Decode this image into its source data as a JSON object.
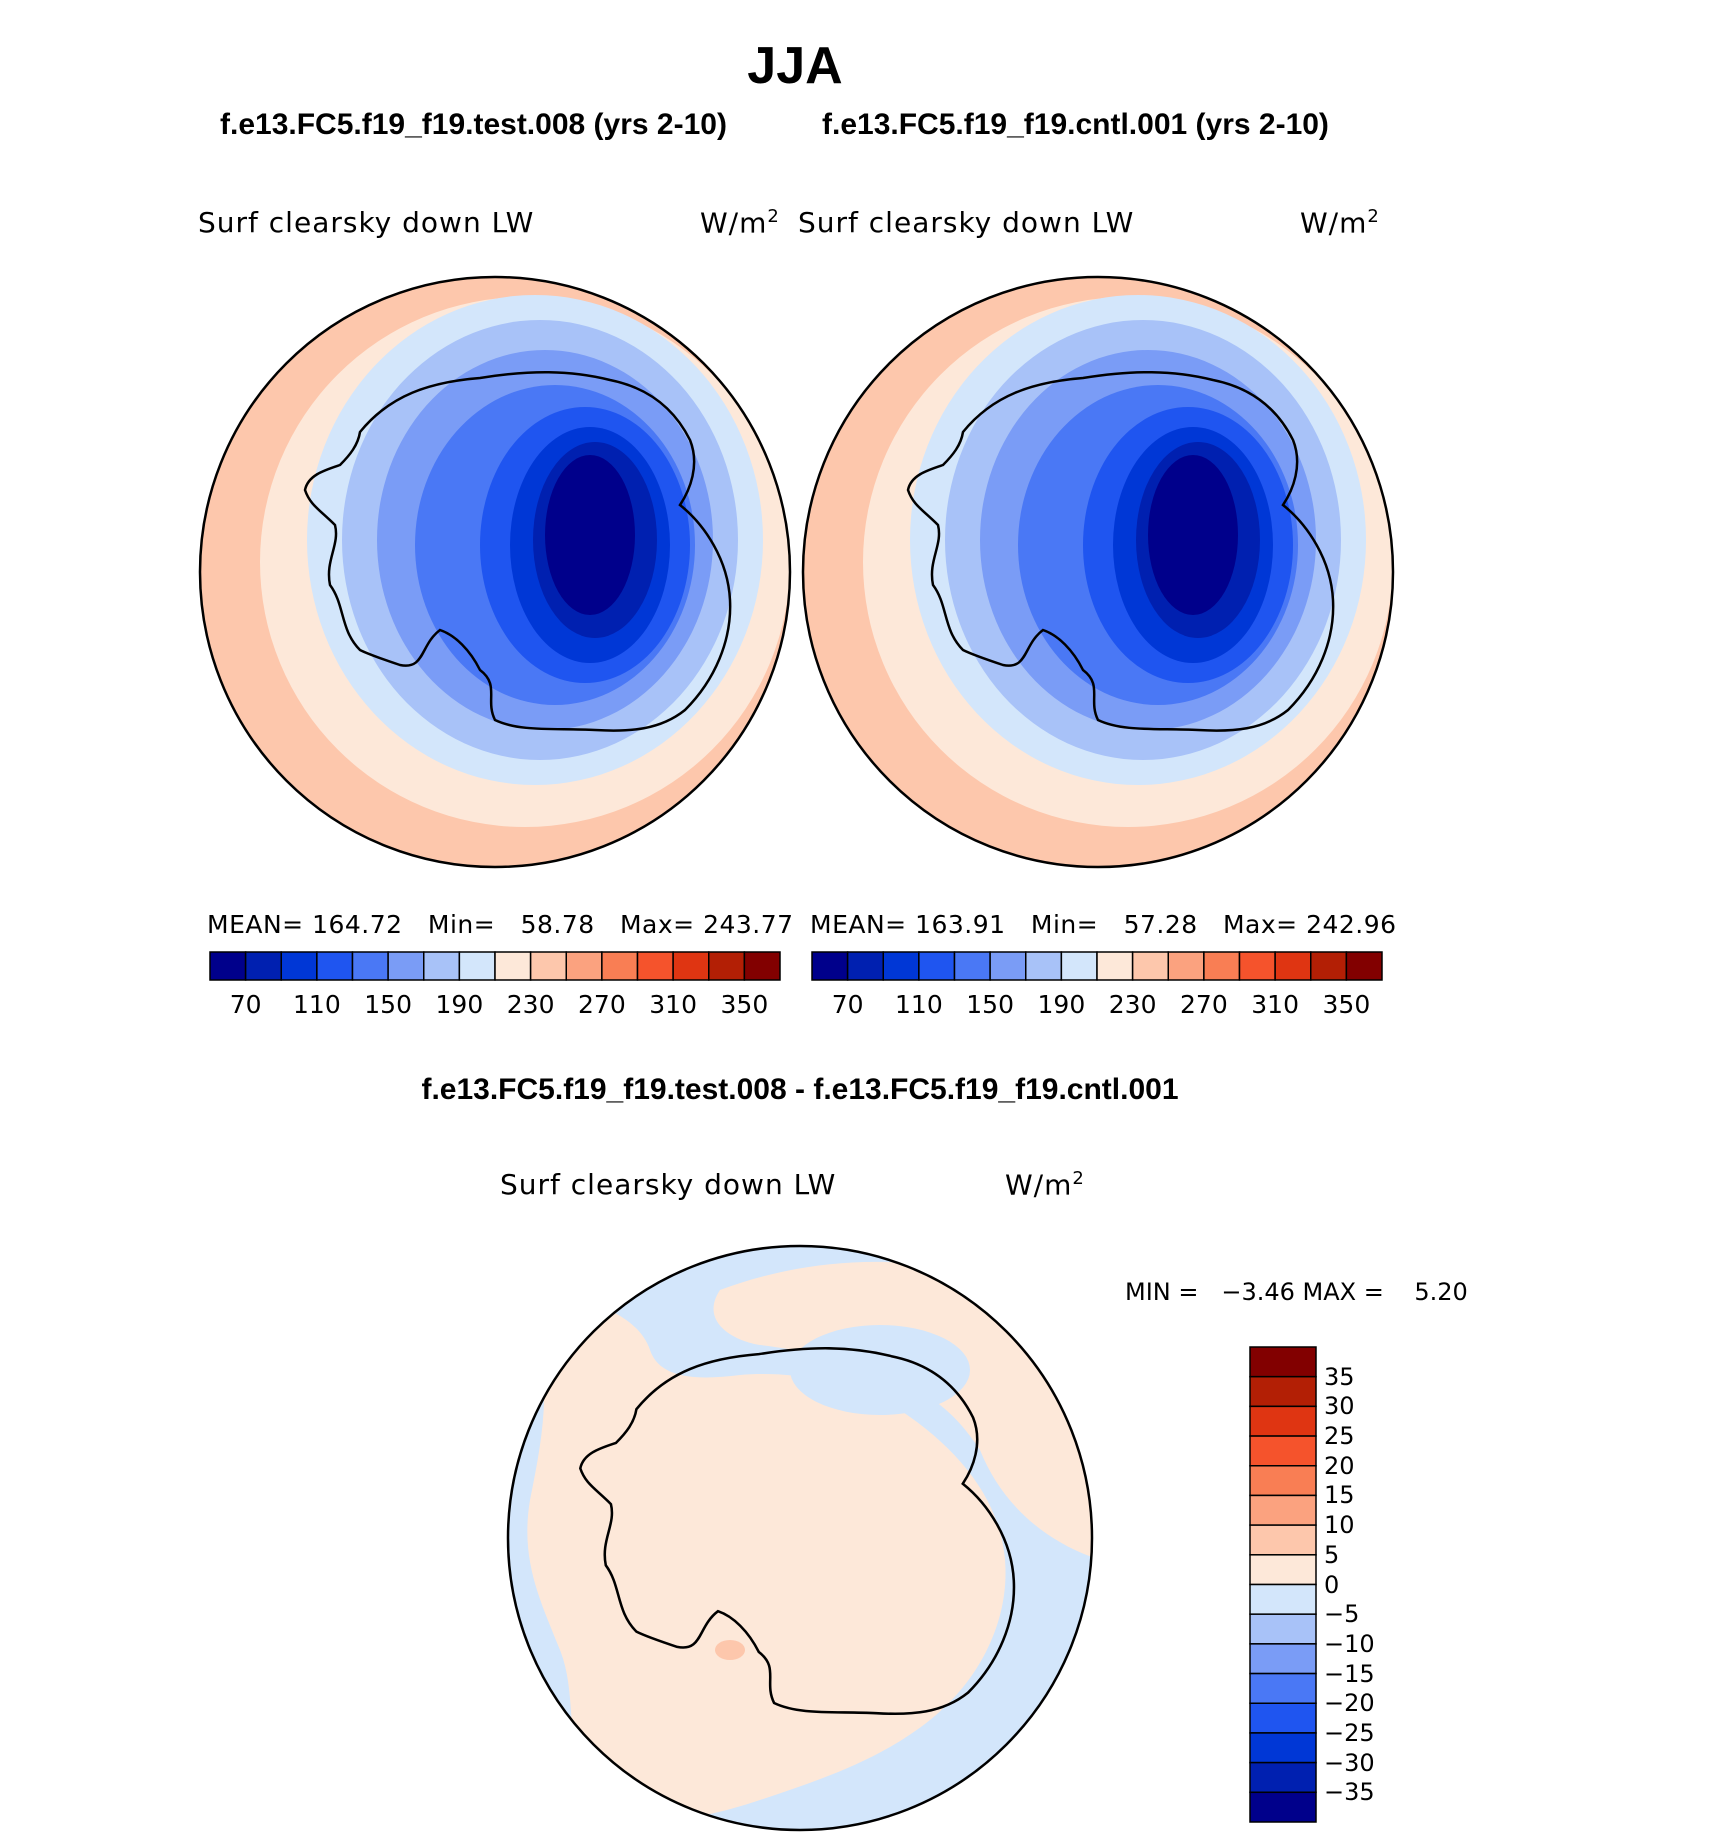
{
  "season": "JJA",
  "panels": [
    {
      "case": "f.e13.FC5.f19_f19.test.008 (yrs 2-10)",
      "variable": "Surf clearsky down LW",
      "units": "W/m",
      "units_exp": "2",
      "mean_label": "MEAN=",
      "mean": "164.72",
      "min_label": "Min=",
      "min": "58.78",
      "max_label": "Max=",
      "max": "243.77"
    },
    {
      "case": "f.e13.FC5.f19_f19.cntl.001 (yrs 2-10)",
      "variable": "Surf clearsky down LW",
      "units": "W/m",
      "units_exp": "2",
      "mean_label": "MEAN=",
      "mean": "163.91",
      "min_label": "Min=",
      "min": "57.28",
      "max_label": "Max=",
      "max": "242.96"
    }
  ],
  "diff": {
    "title": "f.e13.FC5.f19_f19.test.008 - f.e13.FC5.f19_f19.cntl.001",
    "variable": "Surf clearsky down LW",
    "units": "W/m",
    "units_exp": "2",
    "minmax_text": "MIN =   −3.46 MAX =    5.20"
  },
  "top_colorbar": {
    "labels": [
      "70",
      "110",
      "150",
      "190",
      "230",
      "270",
      "310",
      "350"
    ],
    "colors": [
      "#00008b",
      "#0020b0",
      "#0037d6",
      "#1f55f0",
      "#4a78f5",
      "#7a9cf6",
      "#a8c2f8",
      "#d3e6fb",
      "#fde8d9",
      "#fdc7ac",
      "#fba27f",
      "#f97e54",
      "#f5532c",
      "#df3512",
      "#b31f05",
      "#820000"
    ]
  },
  "diff_colorbar": {
    "labels": [
      "35",
      "30",
      "25",
      "20",
      "15",
      "10",
      "5",
      "0",
      "−5",
      "−10",
      "−15",
      "−20",
      "−25",
      "−30",
      "−35"
    ],
    "colors": [
      "#820000",
      "#b31f05",
      "#df3512",
      "#f5532c",
      "#f97e54",
      "#fba27f",
      "#fdc7ac",
      "#fde8d9",
      "#d3e6fb",
      "#a8c2f8",
      "#7a9cf6",
      "#4a78f5",
      "#1f55f0",
      "#0037d6",
      "#0020b0",
      "#00008b"
    ]
  }
}
